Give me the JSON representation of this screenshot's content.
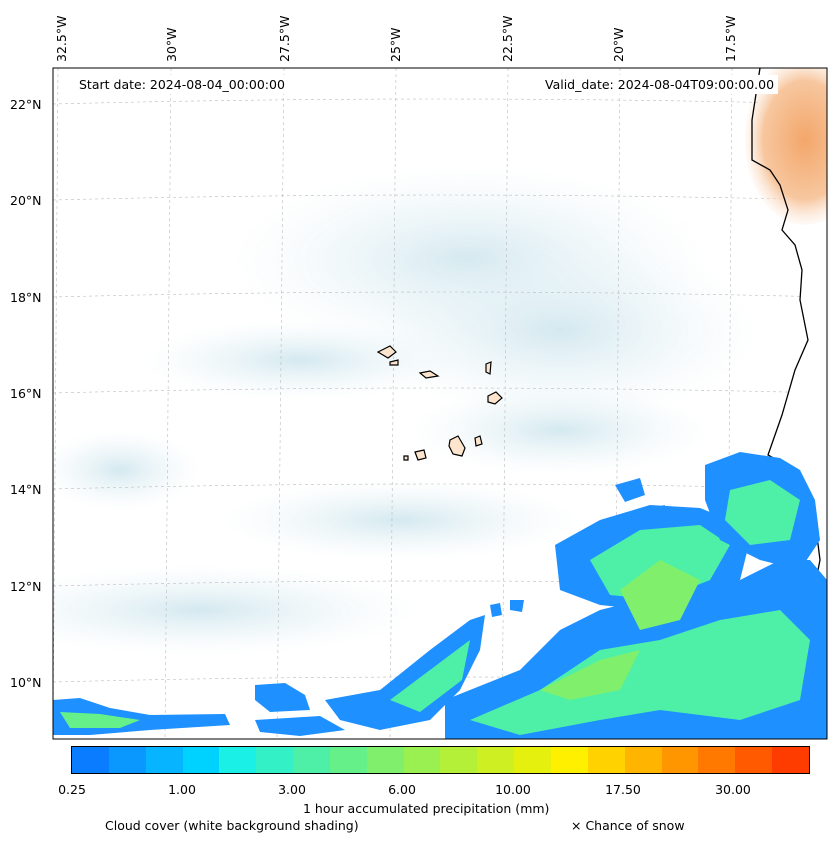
{
  "map": {
    "lon_labels": [
      "32.5°W",
      "30°W",
      "27.5°W",
      "25°W",
      "22.5°W",
      "20°W",
      "17.5°W"
    ],
    "lat_labels": [
      "22°N",
      "20°N",
      "18°N",
      "16°N",
      "14°N",
      "12°N",
      "10°N"
    ],
    "start_date": "Start date: 2024-08-04_00:00:00",
    "valid_date": "Valid_date: 2024-08-04T09:00:00.00"
  },
  "colorbar": {
    "ticks": [
      "0.25",
      "1.00",
      "3.00",
      "6.00",
      "10.00",
      "17.50",
      "30.00"
    ],
    "colors": [
      "#0a7cff",
      "#0a98ff",
      "#06b4ff",
      "#00d2ff",
      "#1af0e6",
      "#33f0c6",
      "#4ef0a8",
      "#66f08a",
      "#80f06c",
      "#9af050",
      "#b4f038",
      "#cef022",
      "#e6f00e",
      "#fff000",
      "#ffd200",
      "#ffb400",
      "#ff9600",
      "#ff7800",
      "#ff5a00",
      "#ff3c00"
    ],
    "label": "1 hour accumulated precipitation (mm)"
  },
  "footer": {
    "cloud_label": "Cloud cover (white background shading)",
    "snow_label": "× Chance of snow"
  }
}
